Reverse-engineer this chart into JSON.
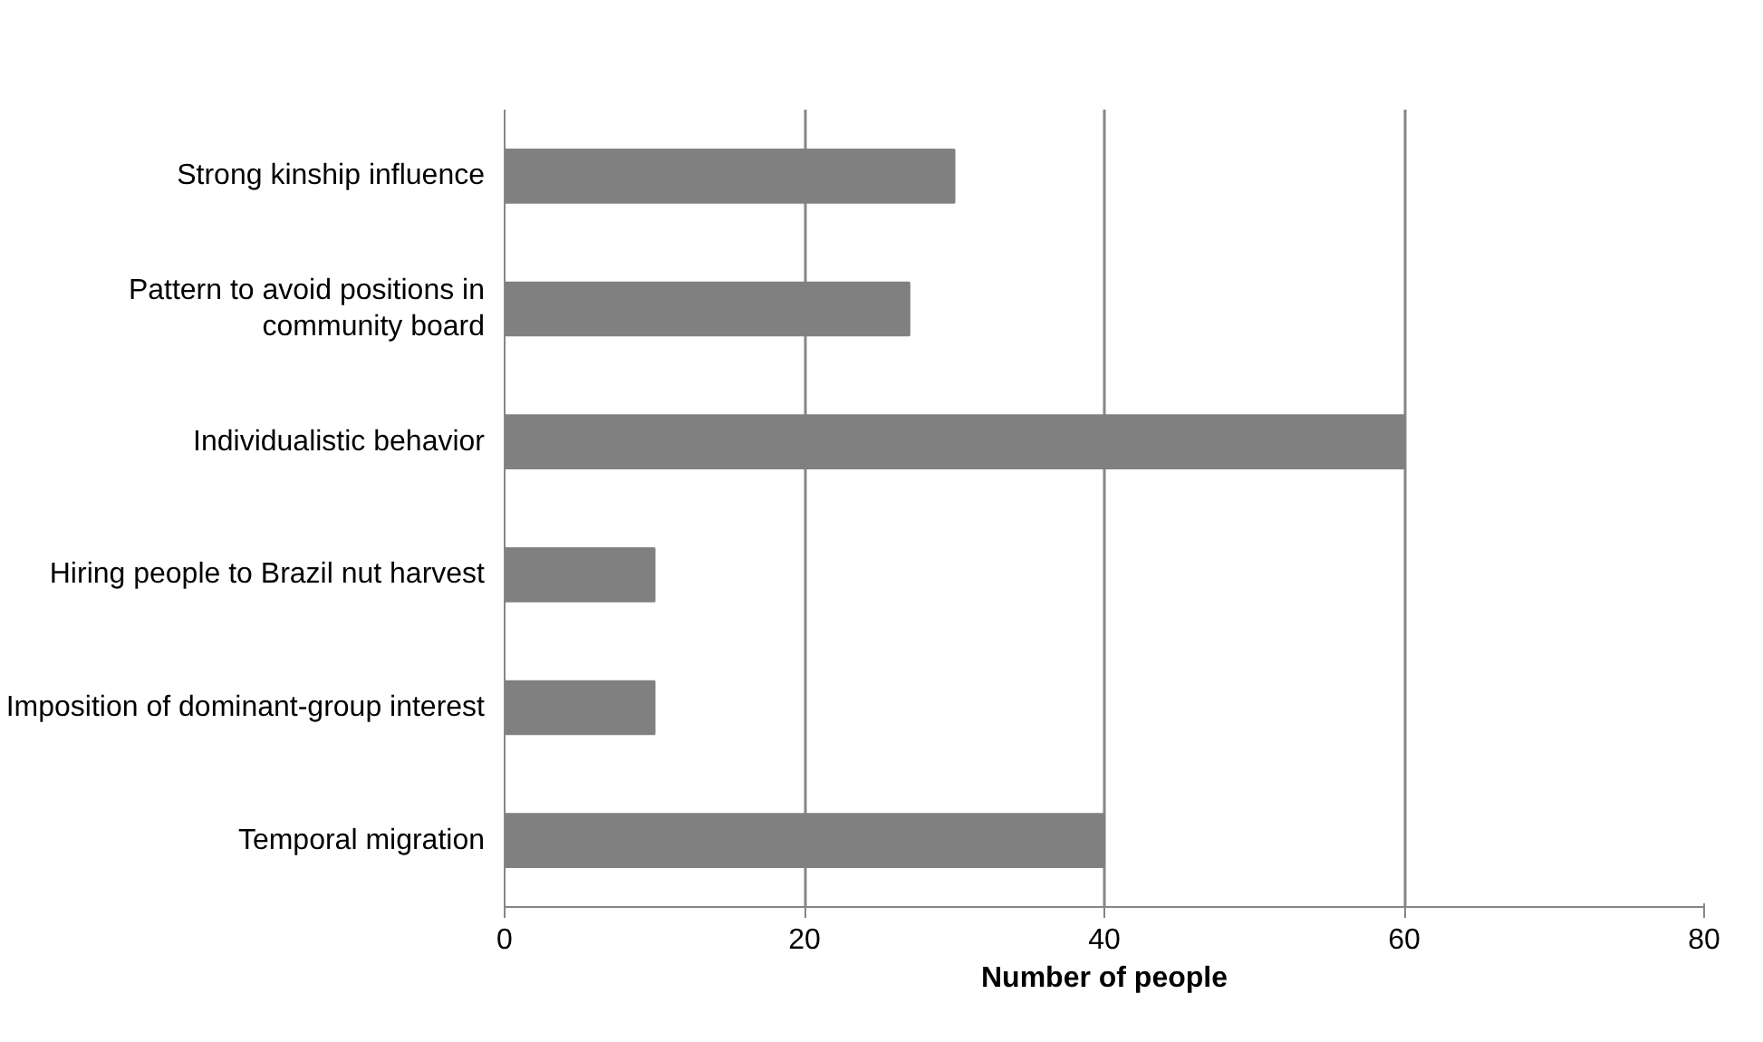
{
  "chart_data": {
    "type": "bar",
    "orientation": "horizontal",
    "xlabel": "Number of people",
    "categories": [
      "Strong kinship influence",
      "Pattern to avoid positions in community board",
      "Individualistic behavior",
      "Hiring people to Brazil nut harvest",
      "Imposition of dominant-group interest",
      "Temporal migration"
    ],
    "values": [
      30,
      27,
      60,
      10,
      10,
      40
    ],
    "color": "#808080",
    "xlim": [
      0,
      80
    ],
    "xticks": [
      0,
      20,
      40,
      60,
      80
    ],
    "grid": "x"
  }
}
